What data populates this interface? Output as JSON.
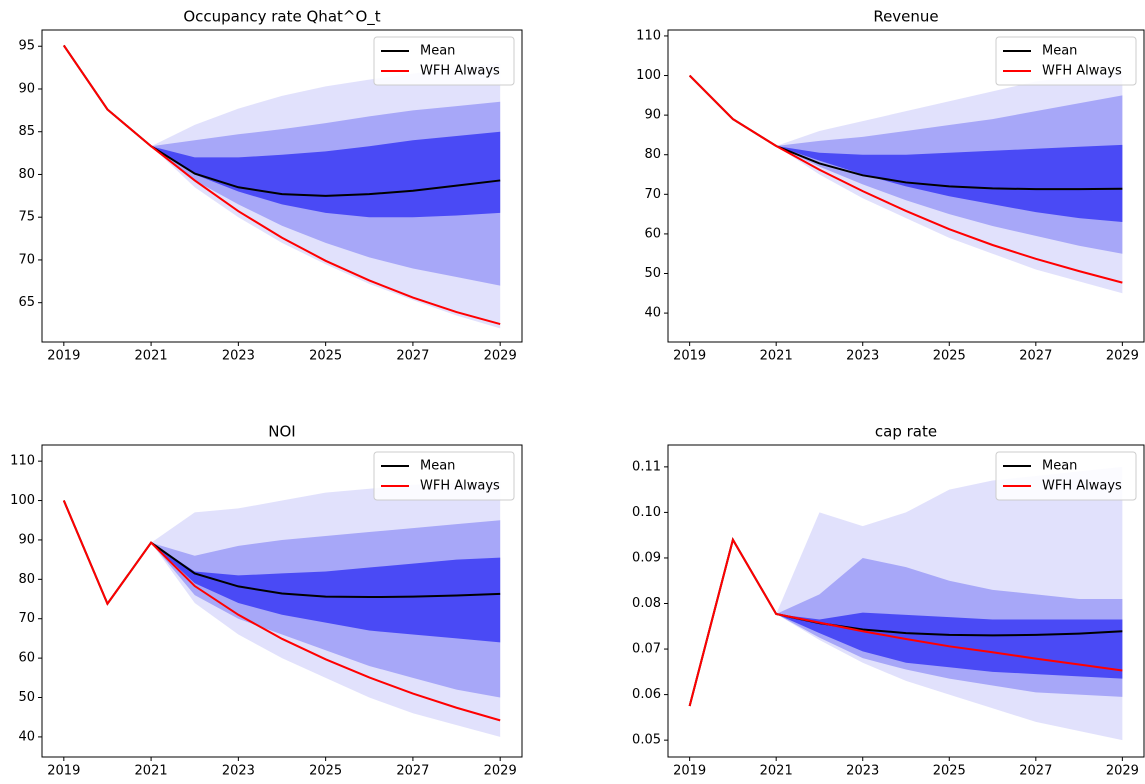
{
  "chart_data": [
    {
      "type": "line",
      "title": "Occupancy rate Qhat^O_t",
      "x": [
        2019,
        2020,
        2021,
        2022,
        2023,
        2024,
        2025,
        2026,
        2027,
        2028,
        2029
      ],
      "xlim": [
        2018.5,
        2029.5
      ],
      "xticks": [
        2019,
        2021,
        2023,
        2025,
        2027,
        2029
      ],
      "ylim": [
        60.4,
        96.9
      ],
      "yticks": [
        65,
        70,
        75,
        80,
        85,
        90,
        95
      ],
      "legend": "upper right",
      "bands": [
        {
          "color": "#dcdcfb",
          "lower": [
            null,
            null,
            83.3,
            78.5,
            75,
            72,
            69.5,
            67.2,
            65.3,
            63.5,
            62
          ],
          "upper": [
            null,
            null,
            83.3,
            85.8,
            87.7,
            89.2,
            90.3,
            91.1,
            91.8,
            92.5,
            93
          ]
        },
        {
          "color": "#9c9cf7",
          "lower": [
            null,
            null,
            83.3,
            79.3,
            76.5,
            74,
            72,
            70.3,
            69,
            68,
            67
          ],
          "upper": [
            null,
            null,
            83.3,
            84,
            84.7,
            85.3,
            86,
            86.8,
            87.5,
            88,
            88.5
          ]
        },
        {
          "color": "#3a3af4",
          "lower": [
            null,
            null,
            83.3,
            80,
            78,
            76.5,
            75.5,
            75,
            75,
            75.2,
            75.5
          ],
          "upper": [
            null,
            null,
            83.3,
            82,
            82,
            82.3,
            82.7,
            83.3,
            84,
            84.5,
            85
          ]
        }
      ],
      "series": [
        {
          "name": "Mean",
          "color": "#000000",
          "values": [
            95.1,
            87.6,
            83.3,
            80.1,
            78.5,
            77.7,
            77.5,
            77.7,
            78.1,
            78.7,
            79.3
          ]
        },
        {
          "name": "WFH Always",
          "color": "#ff0000",
          "values": [
            95.1,
            87.6,
            83.3,
            79.3,
            75.7,
            72.6,
            69.9,
            67.6,
            65.6,
            63.9,
            62.5
          ]
        }
      ]
    },
    {
      "type": "line",
      "title": "Revenue",
      "x": [
        2019,
        2020,
        2021,
        2022,
        2023,
        2024,
        2025,
        2026,
        2027,
        2028,
        2029
      ],
      "xlim": [
        2018.5,
        2029.5
      ],
      "xticks": [
        2019,
        2021,
        2023,
        2025,
        2027,
        2029
      ],
      "ylim": [
        32.7,
        111.5
      ],
      "yticks": [
        40,
        50,
        60,
        70,
        80,
        90,
        100,
        110
      ],
      "legend": "upper right",
      "bands": [
        {
          "color": "#dcdcfb",
          "lower": [
            null,
            null,
            82.2,
            75,
            69,
            64,
            59,
            55,
            51,
            48,
            45
          ],
          "upper": [
            null,
            null,
            82.2,
            86,
            88.5,
            91,
            93.5,
            96,
            98.5,
            100,
            101
          ]
        },
        {
          "color": "#9c9cf7",
          "lower": [
            null,
            null,
            82.2,
            77,
            72.5,
            68.5,
            65,
            62,
            59.5,
            57,
            55
          ],
          "upper": [
            null,
            null,
            82.2,
            83.5,
            84.5,
            86,
            87.5,
            89,
            91,
            93,
            95
          ]
        },
        {
          "color": "#3a3af4",
          "lower": [
            null,
            null,
            82.2,
            78.5,
            75,
            72,
            69.5,
            67.5,
            65.5,
            64,
            63
          ],
          "upper": [
            null,
            null,
            82.2,
            80.5,
            80,
            80,
            80.5,
            81,
            81.5,
            82,
            82.5
          ]
        }
      ],
      "series": [
        {
          "name": "Mean",
          "color": "#000000",
          "values": [
            100,
            89,
            82.2,
            77.8,
            74.8,
            73,
            72,
            71.5,
            71.3,
            71.3,
            71.4
          ]
        },
        {
          "name": "WFH Always",
          "color": "#ff0000",
          "values": [
            100,
            89,
            82.2,
            76.2,
            70.8,
            65.8,
            61.2,
            57.2,
            53.7,
            50.6,
            47.7
          ]
        }
      ]
    },
    {
      "type": "line",
      "title": "NOI",
      "x": [
        2019,
        2020,
        2021,
        2022,
        2023,
        2024,
        2025,
        2026,
        2027,
        2028,
        2029
      ],
      "xlim": [
        2018.5,
        2029.5
      ],
      "xticks": [
        2019,
        2021,
        2023,
        2025,
        2027,
        2029
      ],
      "ylim": [
        34.9,
        114.1
      ],
      "yticks": [
        40,
        50,
        60,
        70,
        80,
        90,
        100,
        110
      ],
      "legend": "upper right",
      "bands": [
        {
          "color": "#dcdcfb",
          "lower": [
            null,
            null,
            89.3,
            74,
            66,
            60,
            55,
            50,
            46,
            43,
            40
          ],
          "upper": [
            null,
            null,
            89.3,
            97,
            98,
            100,
            102,
            103,
            104,
            104.5,
            105
          ]
        },
        {
          "color": "#9c9cf7",
          "lower": [
            null,
            null,
            89.3,
            76,
            70,
            66,
            62,
            58,
            55,
            52,
            50
          ],
          "upper": [
            null,
            null,
            89.3,
            86,
            88.5,
            90,
            91,
            92,
            93,
            94,
            95
          ]
        },
        {
          "color": "#3a3af4",
          "lower": [
            null,
            null,
            89.3,
            79,
            74,
            71,
            69,
            67,
            66,
            65,
            64
          ],
          "upper": [
            null,
            null,
            89.3,
            82,
            81,
            81.5,
            82,
            83,
            84,
            85,
            85.5
          ]
        }
      ],
      "series": [
        {
          "name": "Mean",
          "color": "#000000",
          "values": [
            100,
            73.8,
            89.3,
            81.5,
            78.2,
            76.4,
            75.6,
            75.5,
            75.6,
            75.9,
            76.3
          ]
        },
        {
          "name": "WFH Always",
          "color": "#ff0000",
          "values": [
            100,
            73.8,
            89.3,
            78.3,
            71,
            64.9,
            59.7,
            55.1,
            51,
            47.4,
            44.2
          ]
        }
      ]
    },
    {
      "type": "line",
      "title": "cap rate",
      "x": [
        2019,
        2020,
        2021,
        2022,
        2023,
        2024,
        2025,
        2026,
        2027,
        2028,
        2029
      ],
      "xlim": [
        2018.5,
        2029.5
      ],
      "xticks": [
        2019,
        2021,
        2023,
        2025,
        2027,
        2029
      ],
      "ylim": [
        0.0463,
        0.1148
      ],
      "yticks": [
        0.05,
        0.06,
        0.07,
        0.08,
        0.09,
        {
          "value": 0.1,
          "label": "0.10"
        },
        0.11
      ],
      "legend": "upper right",
      "bands": [
        {
          "color": "#dcdcfb",
          "lower": [
            null,
            null,
            0.0777,
            0.072,
            0.067,
            0.063,
            0.06,
            0.057,
            0.054,
            0.052,
            0.05
          ],
          "upper": [
            null,
            null,
            0.0777,
            0.1,
            0.097,
            0.1,
            0.105,
            0.107,
            0.108,
            0.109,
            0.11
          ]
        },
        {
          "color": "#9c9cf7",
          "lower": [
            null,
            null,
            0.0777,
            0.0725,
            0.068,
            0.0655,
            0.0635,
            0.062,
            0.0605,
            0.06,
            0.0595
          ],
          "upper": [
            null,
            null,
            0.0777,
            0.082,
            0.09,
            0.088,
            0.085,
            0.083,
            0.082,
            0.081,
            0.081
          ]
        },
        {
          "color": "#3a3af4",
          "lower": [
            null,
            null,
            0.0777,
            0.0735,
            0.0695,
            0.067,
            0.066,
            0.065,
            0.0645,
            0.064,
            0.0635
          ],
          "upper": [
            null,
            null,
            0.0777,
            0.0765,
            0.078,
            0.0775,
            0.077,
            0.0765,
            0.0765,
            0.0765,
            0.0765
          ]
        }
      ],
      "series": [
        {
          "name": "Mean",
          "color": "#000000",
          "values": [
            0.0575,
            0.094,
            0.0777,
            0.0757,
            0.0743,
            0.0735,
            0.0731,
            0.073,
            0.0731,
            0.0734,
            0.0739
          ]
        },
        {
          "name": "WFH Always",
          "color": "#ff0000",
          "values": [
            0.0575,
            0.094,
            0.0777,
            0.0758,
            0.0739,
            0.0722,
            0.0706,
            0.0693,
            0.0679,
            0.0666,
            0.0653
          ]
        }
      ]
    }
  ]
}
